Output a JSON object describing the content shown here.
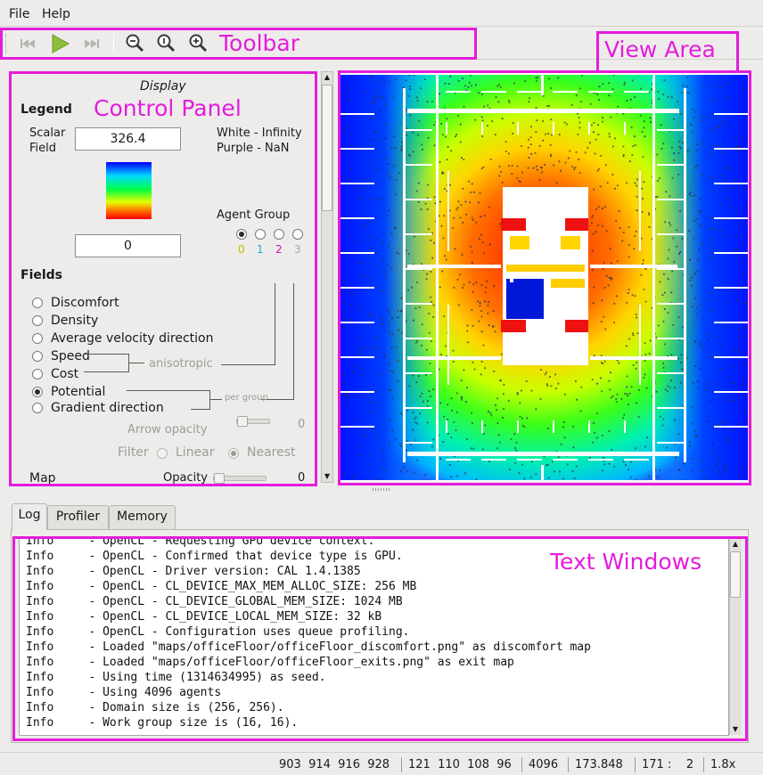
{
  "menubar": {
    "items": [
      "File",
      "Help"
    ]
  },
  "toolbar": {
    "icons": [
      "skip-backward-icon",
      "play-icon",
      "skip-forward-icon",
      "zoom-out-icon",
      "zoom-reset-icon",
      "zoom-in-icon"
    ]
  },
  "annotations": {
    "toolbar": "Toolbar",
    "view_area": "View Area",
    "control_panel": "Control Panel",
    "text_windows": "Text Windows"
  },
  "panel": {
    "title": "Display",
    "legend": {
      "heading": "Legend",
      "scalar_label_line1": "Scalar",
      "scalar_label_line2": "Field",
      "max_value": "326.4",
      "min_value": "0",
      "white_note": "White  - Infinity",
      "purple_note": "Purple - NaN"
    },
    "agent_group": {
      "label": "Agent Group",
      "options": [
        "0",
        "1",
        "2",
        "3"
      ],
      "option_colors": [
        "#c9b800",
        "#1aa8c8",
        "#c21ab8",
        "#a6a6a6"
      ],
      "selected": 0
    },
    "fields": {
      "heading": "Fields",
      "options": [
        "Discomfort",
        "Density",
        "Average velocity direction",
        "Speed",
        "Cost",
        "Potential",
        "Gradient direction"
      ],
      "selected": 5,
      "anisotropic_label": "anisotropic",
      "per_group_label": "per group"
    },
    "arrow_opacity": {
      "label": "Arrow opacity",
      "value": "0",
      "level": 0
    },
    "filter": {
      "label": "Filter",
      "options": [
        "Linear",
        "Nearest"
      ],
      "selected": 1
    },
    "map": {
      "label": "Map",
      "opacity_label": "Opacity",
      "value": "0",
      "level": 0
    }
  },
  "tabs": [
    {
      "label": "Log",
      "active": true
    },
    {
      "label": "Profiler",
      "active": false
    },
    {
      "label": "Memory",
      "active": false
    }
  ],
  "log": {
    "lines": [
      "Info     - OpenCL - Requesting GPU device context.",
      "Info     - OpenCL - Confirmed that device type is GPU.",
      "Info     - OpenCL - Driver version: CAL 1.4.1385",
      "Info     - OpenCL - CL_DEVICE_MAX_MEM_ALLOC_SIZE: 256 MB",
      "Info     - OpenCL - CL_DEVICE_GLOBAL_MEM_SIZE: 1024 MB",
      "Info     - OpenCL - CL_DEVICE_LOCAL_MEM_SIZE: 32 kB",
      "Info     - OpenCL - Configuration uses queue profiling.",
      "Info     - Loaded \"maps/officeFloor/officeFloor_discomfort.png\" as discomfort map",
      "Info     - Loaded \"maps/officeFloor/officeFloor_exits.png\" as exit map",
      "Info     - Using time (1314634995) as seed.",
      "Info     - Using 4096 agents",
      "Info     - Domain size is (256, 256).",
      "Info     - Work group size is (16, 16)."
    ]
  },
  "status": {
    "segments": [
      "903  914  916  928",
      "121  110  108  96",
      "4096",
      "173.848",
      "171 :    2",
      "1.8x"
    ]
  },
  "colors": {
    "annotation": "#e41cdc",
    "background": "#edeceb"
  }
}
